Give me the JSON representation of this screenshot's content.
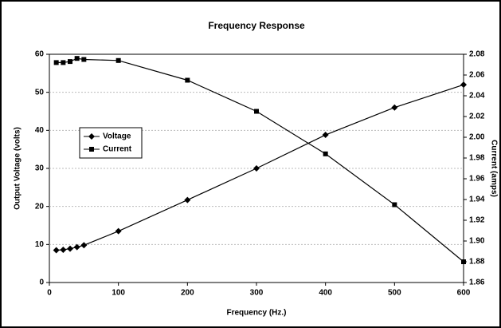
{
  "chart_data": {
    "type": "line",
    "title": "Frequency Response",
    "x_label": "Frequency (Hz.)",
    "y_label": "Output Voltage (volts)",
    "y2_label": "Current (amps)",
    "x": [
      10,
      20,
      30,
      40,
      50,
      100,
      200,
      300,
      400,
      500,
      600
    ],
    "series": [
      {
        "name": "Voltage",
        "color": "#000000",
        "marker": "diamond",
        "values": [
          8.5,
          8.6,
          8.9,
          9.3,
          9.8,
          13.5,
          21.7,
          30,
          38.8,
          46,
          52
        ]
      },
      {
        "name": "Current",
        "color": "#000000",
        "marker": "square",
        "axis": "y2",
        "values": [
          2.072,
          2.072,
          2.073,
          2.076,
          2.075,
          2.074,
          2.055,
          2.025,
          1.984,
          1.935,
          1.88
        ]
      }
    ],
    "xlim": [
      0,
      600
    ],
    "xticks": [
      0,
      100,
      200,
      300,
      400,
      500,
      600
    ],
    "ylim": [
      0,
      60
    ],
    "yticks": [
      0,
      10,
      20,
      30,
      40,
      50,
      60
    ],
    "y2lim": [
      1.86,
      2.08
    ],
    "y2ticks": [
      {
        "value": 1.86,
        "label": "1.86"
      },
      {
        "value": 1.88,
        "label": "1.88"
      },
      {
        "value": 1.9,
        "label": "1.90"
      },
      {
        "value": 1.92,
        "label": "1.92"
      },
      {
        "value": 1.94,
        "label": "1.94"
      },
      {
        "value": 1.96,
        "label": "1.96"
      },
      {
        "value": 1.98,
        "label": "1.98"
      },
      {
        "value": 2.0,
        "label": "2.00"
      },
      {
        "value": 2.02,
        "label": "2.02"
      },
      {
        "value": 2.04,
        "label": "2.04"
      },
      {
        "value": 2.06,
        "label": "2.06"
      },
      {
        "value": 2.08,
        "label": "2.08"
      }
    ],
    "grid": true,
    "legend": "left"
  }
}
